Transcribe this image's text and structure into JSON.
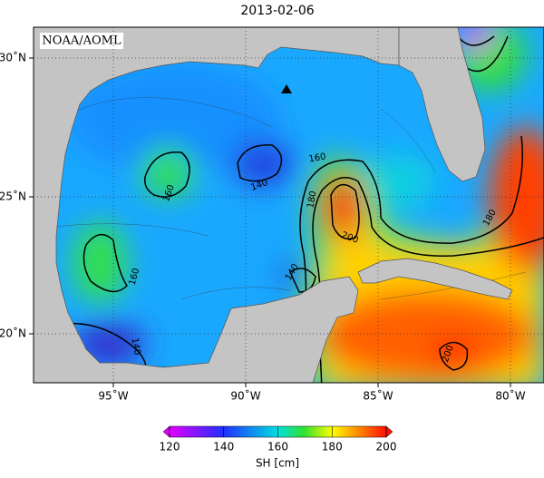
{
  "title": "2013-02-06",
  "credit": "NOAA/AOML",
  "map": {
    "lon_ticks": [
      "95˚W",
      "90˚W",
      "85˚W",
      "80˚W"
    ],
    "lat_ticks": [
      "30˚N",
      "25˚N",
      "20˚N"
    ],
    "contour_labels": [
      160,
      140,
      160,
      180,
      180,
      200,
      160,
      140,
      140,
      200
    ]
  },
  "colorbar": {
    "label": "SH [cm]",
    "lim": [
      120,
      200
    ],
    "ticks": [
      120,
      140,
      160,
      180,
      200
    ]
  }
}
